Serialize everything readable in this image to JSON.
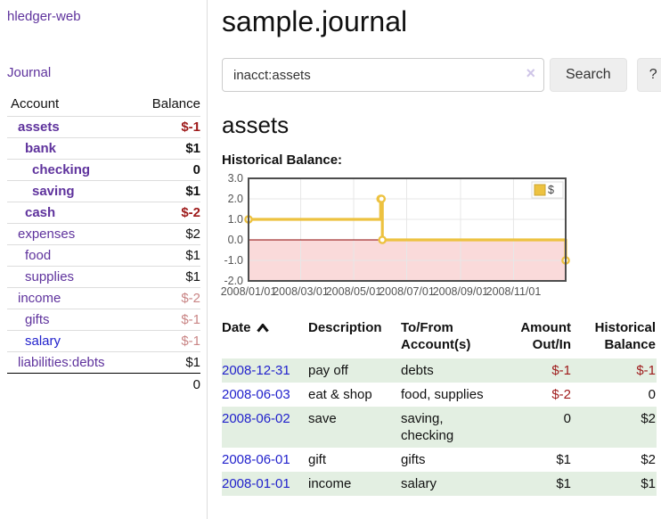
{
  "app_title": "hledger-web",
  "sidebar": {
    "journal_label": "Journal",
    "accounts": {
      "col_account": "Account",
      "col_balance": "Balance",
      "rows": [
        {
          "name": "assets",
          "balance": "$-1",
          "depth": 1,
          "selected": true,
          "neg": "strong"
        },
        {
          "name": "bank",
          "balance": "$1",
          "depth": 2,
          "selected": true
        },
        {
          "name": "checking",
          "balance": "0",
          "depth": 3,
          "selected": true
        },
        {
          "name": "saving",
          "balance": "$1",
          "depth": 3,
          "selected": true
        },
        {
          "name": "cash",
          "balance": "$-2",
          "depth": 2,
          "selected": true,
          "neg": "strong"
        },
        {
          "name": "expenses",
          "balance": "$2",
          "depth": 1
        },
        {
          "name": "food",
          "balance": "$1",
          "depth": 2
        },
        {
          "name": "supplies",
          "balance": "$1",
          "depth": 2
        },
        {
          "name": "income",
          "balance": "$-2",
          "depth": 1,
          "neg": "soft"
        },
        {
          "name": "gifts",
          "balance": "$-1",
          "depth": 2,
          "neg": "soft"
        },
        {
          "name": "salary",
          "balance": "$-1",
          "depth": 2,
          "neg": "soft",
          "link_style": "blue"
        },
        {
          "name": "liabilities:debts",
          "balance": "$1",
          "depth": 1
        }
      ],
      "total": "0"
    }
  },
  "main": {
    "title": "sample.journal",
    "search": {
      "value": "inacct:assets",
      "clear_icon": "×",
      "search_button": "Search",
      "help_button": "?"
    },
    "account_heading": "assets",
    "chart_heading": "Historical Balance:"
  },
  "chart_data": {
    "type": "line",
    "step": true,
    "title": "Historical Balance",
    "series": [
      {
        "name": "$",
        "color": "#edc240",
        "points": [
          [
            "2008-01-01",
            1
          ],
          [
            "2008-06-01",
            2
          ],
          [
            "2008-06-02",
            2
          ],
          [
            "2008-06-03",
            0
          ],
          [
            "2008-12-31",
            -1
          ]
        ]
      }
    ],
    "x_range": [
      "2008-01-01",
      "2008-12-31"
    ],
    "ylim": [
      -2,
      3
    ],
    "yticks": [
      3,
      2,
      1,
      0,
      -1,
      -2
    ],
    "xticks": [
      "2008/01/01",
      "2008/03/01",
      "2008/05/01",
      "2008/07/01",
      "2008/09/01",
      "2008/11/01"
    ],
    "legend": {
      "label": "$",
      "position": "top-right"
    },
    "grid": true,
    "negative_fill": "#fadada",
    "zero_line_color": "#8b0000"
  },
  "register": {
    "headers": {
      "date": "Date",
      "sort_icon": "chevron-up",
      "description": "Description",
      "tofrom": "To/From Account(s)",
      "amount": "Amount Out/In",
      "balance": "Historical Balance"
    },
    "rows": [
      {
        "date": "2008-12-31",
        "description": "pay off",
        "accounts": "debts",
        "amount": "$-1",
        "balance": "$-1",
        "amount_neg": true,
        "balance_neg": true
      },
      {
        "date": "2008-06-03",
        "description": "eat & shop",
        "accounts": "food, supplies",
        "amount": "$-2",
        "balance": "0",
        "amount_neg": true,
        "balance_neg": false
      },
      {
        "date": "2008-06-02",
        "description": "save",
        "accounts": "saving, checking",
        "amount": "0",
        "balance": "$2",
        "amount_neg": false,
        "balance_neg": false
      },
      {
        "date": "2008-06-01",
        "description": "gift",
        "accounts": "gifts",
        "amount": "$1",
        "balance": "$2",
        "amount_neg": false,
        "balance_neg": false
      },
      {
        "date": "2008-01-01",
        "description": "income",
        "accounts": "salary",
        "amount": "$1",
        "balance": "$1",
        "amount_neg": false,
        "balance_neg": false
      }
    ]
  },
  "colors": {
    "link_purple": "#5f339d",
    "link_blue": "#2222cc",
    "negative_strong": "#9e1a1a",
    "negative_soft": "#c98585",
    "row_green": "#e3efe2",
    "chart_line": "#edc240",
    "chart_negative_region": "#fadada",
    "chart_zero_line": "#8b0000"
  }
}
